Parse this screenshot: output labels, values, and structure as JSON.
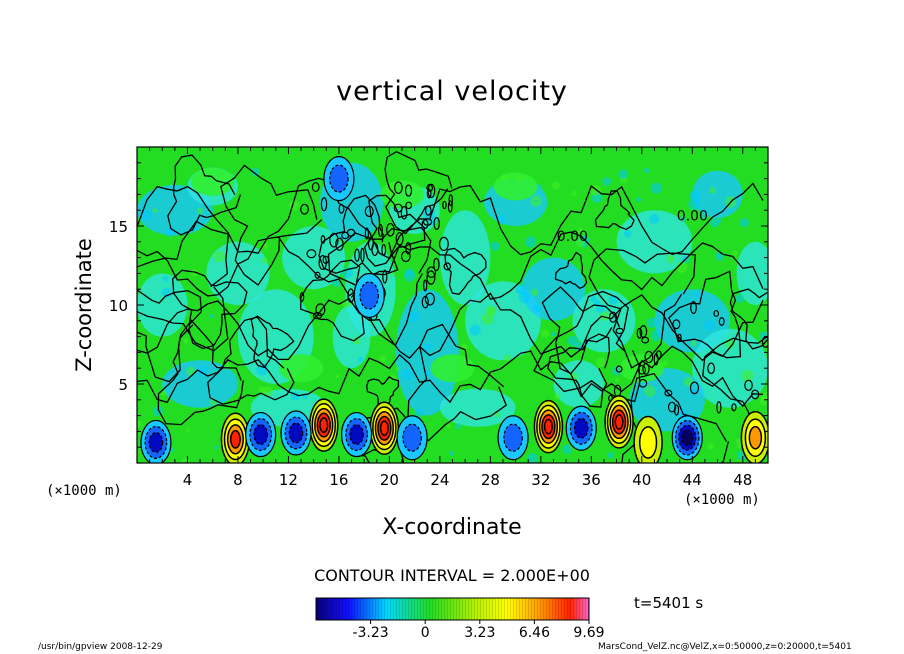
{
  "chart_data": {
    "type": "heatmap",
    "title": "vertical velocity",
    "xlabel": "X-coordinate",
    "ylabel": "Z-coordinate",
    "x_unit": "(×1000 m)",
    "y_unit": "(×1000 m)",
    "xlim": [
      0,
      50
    ],
    "ylim": [
      0,
      20
    ],
    "x_ticks": [
      "4",
      "8",
      "12",
      "16",
      "20",
      "24",
      "28",
      "32",
      "36",
      "40",
      "44",
      "48"
    ],
    "y_ticks": [
      "5",
      "10",
      "15"
    ],
    "contour_labels": [
      {
        "text": "0.00",
        "x": 44,
        "z": 15.6
      },
      {
        "text": "0.00",
        "x": 34.5,
        "z": 14.3
      }
    ],
    "contour_interval_text": "CONTOUR INTERVAL = 2.000E+00",
    "colorbar": {
      "ticks": [
        "-3.23",
        "0",
        "3.23",
        "6.46",
        "9.69"
      ],
      "range": [
        -6.46,
        9.69
      ]
    },
    "time_label": "t=5401 s",
    "updraft_cores": [
      {
        "x": 7.8,
        "z": 1.5,
        "w": 8.0
      },
      {
        "x": 14.8,
        "z": 2.4,
        "w": 9.69
      },
      {
        "x": 19.6,
        "z": 2.2,
        "w": 9.69
      },
      {
        "x": 32.6,
        "z": 2.3,
        "w": 9.0
      },
      {
        "x": 38.2,
        "z": 2.6,
        "w": 9.69
      },
      {
        "x": 40.5,
        "z": 1.3,
        "w": 4.5
      },
      {
        "x": 49.0,
        "z": 1.6,
        "w": 6.0
      }
    ],
    "downdraft_cores": [
      {
        "x": 1.5,
        "z": 1.3,
        "w": -5.0
      },
      {
        "x": 9.8,
        "z": 1.8,
        "w": -4.5
      },
      {
        "x": 12.6,
        "z": 1.9,
        "w": -4.5
      },
      {
        "x": 17.4,
        "z": 1.8,
        "w": -4.5
      },
      {
        "x": 21.8,
        "z": 1.6,
        "w": -4.0
      },
      {
        "x": 29.8,
        "z": 1.6,
        "w": -4.0
      },
      {
        "x": 35.2,
        "z": 2.2,
        "w": -4.5
      },
      {
        "x": 43.6,
        "z": 1.6,
        "w": -6.46
      },
      {
        "x": 18.4,
        "z": 10.6,
        "w": -3.5
      },
      {
        "x": 16.0,
        "z": 18.0,
        "w": -2.5
      }
    ]
  },
  "footer": {
    "left": "/usr/bin/gpview   2008-12-29",
    "right": "MarsCond_VelZ.nc@VelZ,x=0:50000,z=0:20000,t=5401"
  },
  "colors": {
    "background_field": "#22dd22",
    "updraft_core": "#ff1500",
    "downdraft_core": "#0008c0"
  }
}
